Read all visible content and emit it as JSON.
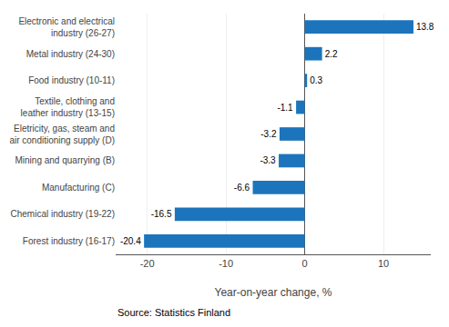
{
  "chart_data": {
    "type": "bar",
    "orientation": "horizontal",
    "categories": [
      "Forest industry (16-17)",
      "Chemical industry (19-22)",
      "Manufacturing (C)",
      "Mining and quarrying (B)",
      "Eletricity, gas, steam and\nair conditioning supply (D)",
      "Textile, clothing and\nleather industry (13-15)",
      "Food industry (10-11)",
      "Metal industry (24-30)",
      "Electronic and electrical\nindustry (26-27)"
    ],
    "values": [
      -20.4,
      -16.5,
      -6.6,
      -3.3,
      -3.2,
      -1.1,
      0.3,
      2.2,
      13.8
    ],
    "color": "#1c75bc",
    "xlabel": "Year-on-year change, %",
    "xlim": [
      -24,
      16
    ],
    "xticks": [
      -20,
      -10,
      0,
      10
    ],
    "annotations": [
      "Source: Statistics Finland"
    ],
    "data_labels": true,
    "grid": true
  }
}
